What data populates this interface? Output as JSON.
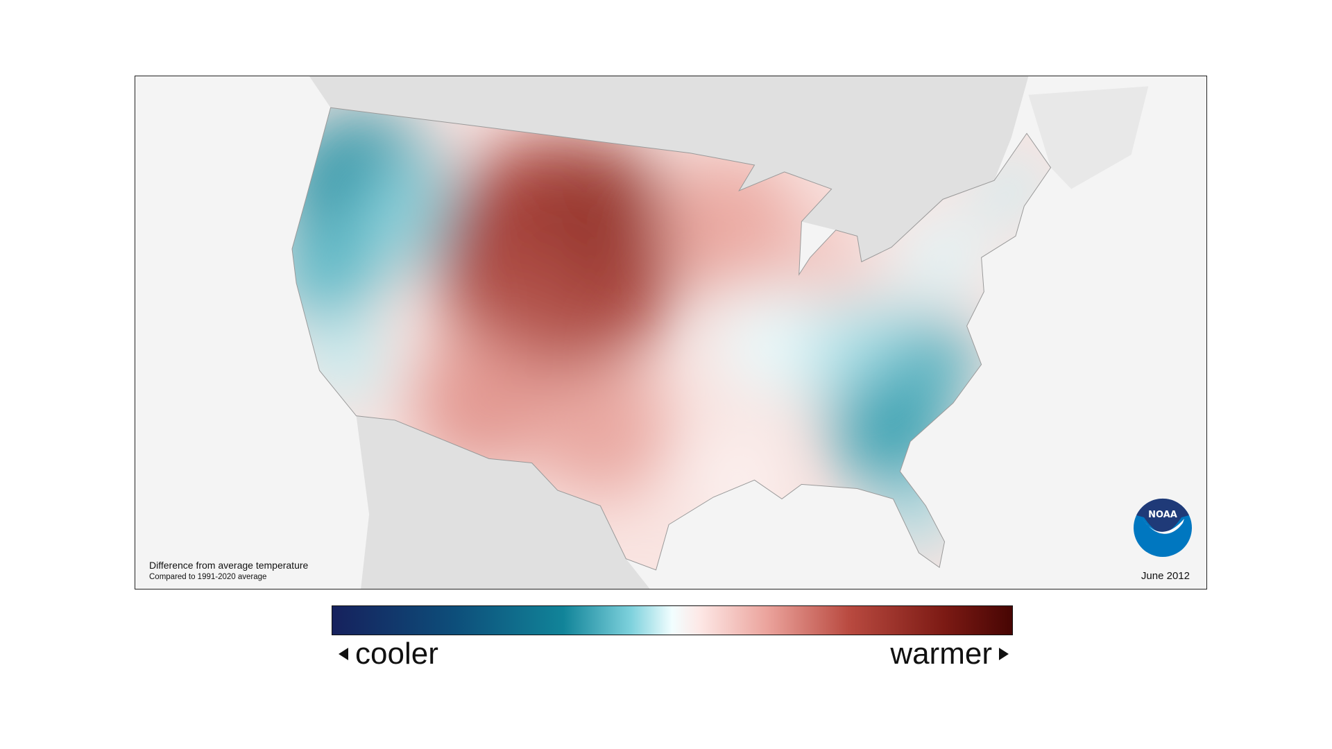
{
  "map": {
    "caption_title": "Difference from average temperature",
    "caption_subtitle": "Compared to 1991-2020 average",
    "date": "June 2012",
    "logo_text": "NOAA",
    "region": "Contiguous United States",
    "colors": {
      "coolest": "#16215d",
      "cool": "#118499",
      "neutral": "#f2feff",
      "warm": "#b94a40",
      "warmest": "#470503",
      "land_outside": "#e0e0e0",
      "background": "#f4f4f4"
    }
  },
  "legend": {
    "cooler_label": "cooler",
    "warmer_label": "warmer"
  }
}
